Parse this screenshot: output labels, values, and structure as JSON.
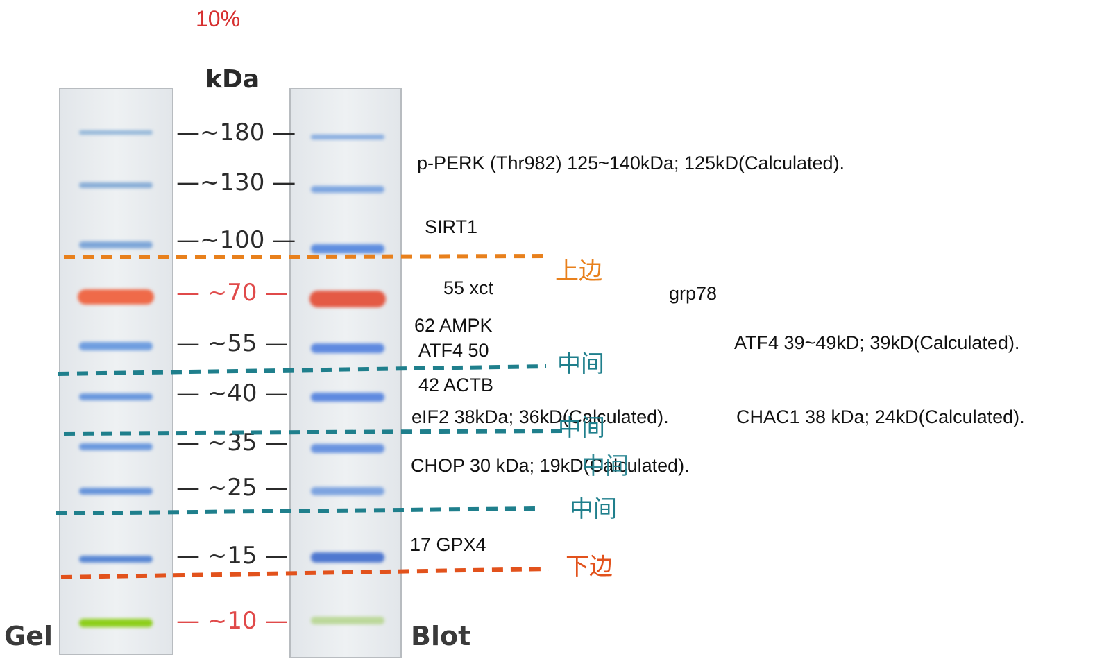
{
  "header": {
    "percent": "10%",
    "unit": "kDa"
  },
  "lanes": {
    "gel": "Gel",
    "blot": "Blot"
  },
  "markers": [
    {
      "kda": 180,
      "label": "—~180 —",
      "color": "#2b2b2b"
    },
    {
      "kda": 130,
      "label": "—~130 —",
      "color": "#2b2b2b"
    },
    {
      "kda": 100,
      "label": "—~100 —",
      "color": "#2b2b2b"
    },
    {
      "kda": 70,
      "label": "— ~70 —",
      "color": "#e04a4a"
    },
    {
      "kda": 55,
      "label": "— ~55 —",
      "color": "#2b2b2b"
    },
    {
      "kda": 40,
      "label": "— ~40 —",
      "color": "#2b2b2b"
    },
    {
      "kda": 35,
      "label": "— ~35 —",
      "color": "#2b2b2b"
    },
    {
      "kda": 25,
      "label": "— ~25 —",
      "color": "#2b2b2b"
    },
    {
      "kda": 15,
      "label": "— ~15 —",
      "color": "#2b2b2b"
    },
    {
      "kda": 10,
      "label": "— ~10 —",
      "color": "#e04a4a"
    }
  ],
  "annotations": {
    "pperk": "p-PERK (Thr982) 125~140kDa; 125kD(Calculated).",
    "sirt1": "SIRT1",
    "xct": "55 xct",
    "grp78": "grp78",
    "ampk": "62 AMPK",
    "atf4_short": "ATF4 50",
    "atf4_long": "ATF4 39~49kD; 39kD(Calculated).",
    "actb": "42 ACTB",
    "eif2": "eIF2 38kDa; 36kD(Calculated).",
    "chac1": "CHAC1 38 kDa; 24kD(Calculated).",
    "chop": "CHOP 30 kDa; 19kD(Calculated).",
    "gpx4": "17 GPX4"
  },
  "cut_lines": {
    "upper": "上边",
    "middle1": "中间",
    "middle2": "中间",
    "middle3": "中间",
    "middle4": "中间",
    "lower": "下边"
  },
  "colors": {
    "orange": "#e8801c",
    "teal": "#1f7f8c",
    "red_orange": "#e2521c",
    "title_red": "#d62f2f"
  }
}
